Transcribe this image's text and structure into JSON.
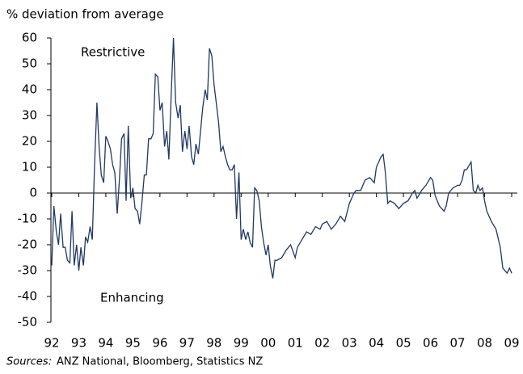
{
  "chart_data": {
    "type": "line",
    "ylabel": "% deviation from average",
    "annotations": [
      "Restrictive",
      "Enhancing"
    ],
    "source_prefix": "Sources:",
    "source": "ANZ National, Bloomberg, Statistics NZ",
    "color": "#1f3864",
    "xlim": [
      1992,
      2009.2
    ],
    "xticks": [
      {
        "value": 1992,
        "label": "92"
      },
      {
        "value": 1993,
        "label": "93"
      },
      {
        "value": 1994,
        "label": "94"
      },
      {
        "value": 1995,
        "label": "95"
      },
      {
        "value": 1996,
        "label": "96"
      },
      {
        "value": 1997,
        "label": "97"
      },
      {
        "value": 1998,
        "label": "98"
      },
      {
        "value": 1999,
        "label": "99"
      },
      {
        "value": 2000,
        "label": "00"
      },
      {
        "value": 2001,
        "label": "01"
      },
      {
        "value": 2002,
        "label": "02"
      },
      {
        "value": 2003,
        "label": "03"
      },
      {
        "value": 2004,
        "label": "04"
      },
      {
        "value": 2005,
        "label": "05"
      },
      {
        "value": 2006,
        "label": "06"
      },
      {
        "value": 2007,
        "label": "07"
      },
      {
        "value": 2008,
        "label": "08"
      },
      {
        "value": 2009,
        "label": "09"
      }
    ],
    "ylim": [
      -50,
      60
    ],
    "yticks": [
      60,
      50,
      40,
      30,
      20,
      10,
      0,
      -10,
      -20,
      -30,
      -40,
      -50
    ],
    "x": [
      1992.0,
      1992.08,
      1992.17,
      1992.25,
      1992.33,
      1992.42,
      1992.5,
      1992.58,
      1992.67,
      1992.75,
      1992.83,
      1992.92,
      1993.0,
      1993.08,
      1993.17,
      1993.25,
      1993.33,
      1993.42,
      1993.5,
      1993.58,
      1993.67,
      1993.75,
      1993.83,
      1993.92,
      1994.0,
      1994.08,
      1994.17,
      1994.25,
      1994.33,
      1994.42,
      1994.5,
      1994.58,
      1994.67,
      1994.75,
      1994.83,
      1994.92,
      1995.0,
      1995.08,
      1995.17,
      1995.25,
      1995.33,
      1995.42,
      1995.5,
      1995.58,
      1995.67,
      1995.75,
      1995.83,
      1995.92,
      1996.0,
      1996.08,
      1996.17,
      1996.25,
      1996.33,
      1996.42,
      1996.5,
      1996.58,
      1996.67,
      1996.75,
      1996.83,
      1996.92,
      1997.0,
      1997.08,
      1997.17,
      1997.25,
      1997.33,
      1997.42,
      1997.5,
      1997.58,
      1997.67,
      1997.75,
      1997.83,
      1997.92,
      1998.0,
      1998.08,
      1998.17,
      1998.25,
      1998.33,
      1998.42,
      1998.5,
      1998.58,
      1998.67,
      1998.75,
      1998.83,
      1998.92,
      1999.0,
      1999.08,
      1999.17,
      1999.25,
      1999.33,
      1999.42,
      1999.5,
      1999.58,
      1999.67,
      1999.75,
      1999.83,
      1999.92,
      2000.0,
      2000.08,
      2000.17,
      2000.25,
      2000.33,
      2000.5,
      2000.67,
      2000.83,
      2001.0,
      2001.08,
      2001.25,
      2001.42,
      2001.58,
      2001.75,
      2001.92,
      2002.0,
      2002.17,
      2002.33,
      2002.5,
      2002.67,
      2002.83,
      2003.0,
      2003.17,
      2003.25,
      2003.42,
      2003.58,
      2003.75,
      2003.92,
      2004.0,
      2004.17,
      2004.25,
      2004.33,
      2004.42,
      2004.5,
      2004.67,
      2004.83,
      2005.0,
      2005.17,
      2005.33,
      2005.42,
      2005.5,
      2005.67,
      2005.83,
      2006.0,
      2006.08,
      2006.17,
      2006.33,
      2006.5,
      2006.58,
      2006.67,
      2006.83,
      2007.0,
      2007.08,
      2007.17,
      2007.25,
      2007.33,
      2007.5,
      2007.58,
      2007.67,
      2007.75,
      2007.83,
      2007.92,
      2008.0,
      2008.08,
      2008.25,
      2008.42,
      2008.58,
      2008.67,
      2008.83,
      2008.92,
      2009.0
    ],
    "values": [
      -28,
      -5,
      -15,
      -20,
      -8,
      -21,
      -21,
      -26,
      -27,
      -7,
      -28,
      -20,
      -30,
      -21,
      -28,
      -17,
      -19,
      -13,
      -18,
      10,
      35,
      18,
      7,
      4,
      22,
      20,
      17,
      11,
      8,
      -8,
      5,
      21,
      23,
      -3,
      26,
      -2,
      2,
      -6,
      -7,
      -12,
      -4,
      7,
      7,
      21,
      21,
      23,
      46,
      45,
      32,
      35,
      18,
      24,
      13,
      39,
      60,
      35,
      29,
      34,
      16,
      24,
      17,
      26,
      14,
      11,
      19,
      15,
      24,
      33,
      40,
      36,
      56,
      53,
      42,
      35,
      27,
      16,
      18,
      14,
      11,
      9,
      9,
      11,
      -10,
      8,
      -18,
      -14,
      -18,
      -15,
      -19,
      -21,
      2,
      1,
      -3,
      -13,
      -19,
      -24,
      -20,
      -28,
      -33,
      -26,
      -26,
      -25,
      -22,
      -20,
      -25,
      -21,
      -18,
      -15,
      -16,
      -13,
      -14,
      -12,
      -11,
      -14,
      -12,
      -9,
      -11,
      -4,
      0,
      1,
      1,
      5,
      6,
      4,
      10,
      14,
      15,
      8,
      -4,
      -3,
      -4,
      -6,
      -4,
      -3,
      0,
      1,
      -2,
      1,
      3,
      6,
      5,
      -1,
      -5,
      -7,
      -5,
      0,
      2,
      3,
      3,
      5,
      9,
      9,
      12,
      1,
      0,
      3,
      1,
      2,
      -3,
      -7,
      -11,
      -14,
      -21,
      -29,
      -31,
      -29,
      -31
    ]
  }
}
